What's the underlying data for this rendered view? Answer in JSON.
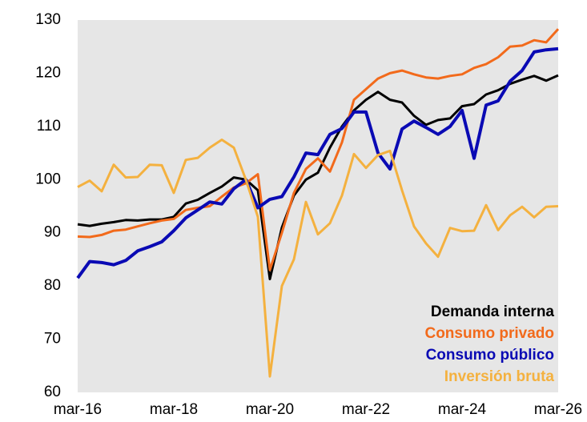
{
  "chart_data": {
    "type": "line",
    "categories": [
      "mar-16",
      null,
      null,
      null,
      null,
      null,
      null,
      null,
      "mar-18",
      null,
      null,
      null,
      null,
      null,
      null,
      null,
      "mar-20",
      null,
      null,
      null,
      null,
      null,
      null,
      null,
      "mar-22",
      null,
      null,
      null,
      null,
      null,
      null,
      null,
      "mar-24",
      null,
      null,
      null,
      null,
      null,
      null,
      null,
      "mar-26"
    ],
    "series": [
      {
        "name": "Demanda interna",
        "color": "#000000",
        "values": [
          91.6,
          91.3,
          91.7,
          92,
          92.4,
          92.3,
          92.5,
          92.5,
          93,
          95.5,
          96.2,
          97.5,
          98.7,
          100.4,
          100,
          98,
          81.3,
          91,
          97,
          100,
          101.3,
          106,
          110,
          113,
          115,
          116.5,
          115,
          114.5,
          112,
          110.3,
          111.2,
          111.5,
          113.8,
          114.2,
          116,
          116.8,
          118,
          118.8,
          119.5,
          118.6,
          119.6
        ]
      },
      {
        "name": "Consumo privado",
        "color": "#f26a1b",
        "values": [
          89.3,
          89.2,
          89.6,
          90.4,
          90.6,
          91.2,
          91.8,
          92.3,
          92.6,
          94.3,
          94.7,
          95,
          96.8,
          98.5,
          99.3,
          101,
          83,
          90,
          97.5,
          102,
          104,
          101.5,
          107,
          115,
          117,
          119,
          120,
          120.5,
          119.8,
          119.2,
          119,
          119.5,
          119.8,
          121,
          121.7,
          123,
          125,
          125.2,
          126.2,
          125.8,
          128.3
        ]
      },
      {
        "name": "Consumo público",
        "color": "#0a0ab4",
        "values": [
          81.5,
          84.6,
          84.4,
          84,
          84.8,
          86.6,
          87.4,
          88.3,
          90.4,
          92.8,
          94.3,
          95.8,
          95.4,
          98.3,
          100,
          94.7,
          96.3,
          96.8,
          100.5,
          105,
          104.7,
          108.5,
          109.6,
          112.7,
          112.7,
          105,
          102,
          109.5,
          111,
          109.8,
          108.5,
          110,
          113,
          104,
          114,
          114.8,
          118.5,
          120.5,
          124,
          124.4,
          124.6
        ]
      },
      {
        "name": "Inversión bruta",
        "color": "#f4b13f",
        "values": [
          98.6,
          99.8,
          97.8,
          102.8,
          100.4,
          100.5,
          102.8,
          102.7,
          97.5,
          103.7,
          104.1,
          106,
          107.5,
          106,
          100,
          93,
          63,
          80,
          85,
          95.8,
          89.7,
          91.8,
          97,
          104.8,
          102.2,
          104.6,
          105.4,
          98,
          91.2,
          88,
          85.5,
          90.9,
          90.3,
          90.4,
          95.2,
          90.5,
          93.3,
          94.9,
          92.9,
          94.9,
          95
        ]
      }
    ],
    "ylim": [
      60,
      130
    ],
    "yticks": [
      60,
      70,
      80,
      90,
      100,
      110,
      120,
      130
    ],
    "legend": "lower right"
  }
}
